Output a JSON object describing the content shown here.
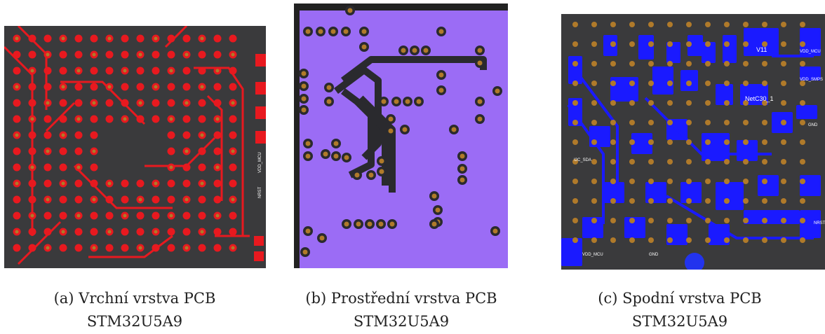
{
  "figures": [
    {
      "caption_line1": "(a) Vrchní vrstva PCB",
      "caption_line2": "STM32U5A9",
      "board_labels": [
        "VDD_MCU",
        "NRST"
      ]
    },
    {
      "caption_line1": "(b) Prostřední vrstva PCB",
      "caption_line2": "STM32U5A9"
    },
    {
      "caption_line1": "(c) Spodní vrstva PCB",
      "caption_line2": "STM32U5A9",
      "board_labels": [
        "V11",
        "VDD_MCU",
        "VDD_SMPS",
        "NetC30_1",
        "GND",
        "I2C_SDA",
        "VDD_MCU",
        "GND",
        "NRST"
      ]
    }
  ],
  "colors": {
    "top_copper": "#e8191f",
    "inner_fill": "#9b6cf5",
    "bottom_copper": "#1a1aff",
    "board": "#3a3a3c",
    "pad": "#b07a2a"
  }
}
